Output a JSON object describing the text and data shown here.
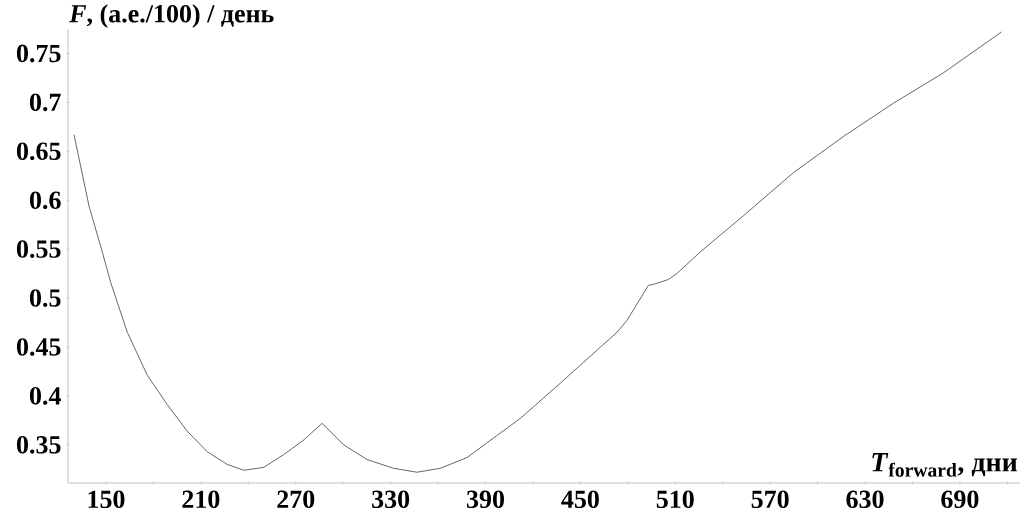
{
  "chart_data": {
    "type": "line",
    "xlabel": "*T*$_{forward}$, дни",
    "ylabel": "*F*, (а.е./100) / день",
    "x": [
      129.8,
      139.3,
      147.7,
      153,
      163.5,
      176.2,
      188.8,
      201.4,
      214,
      226.7,
      237.2,
      249.8,
      262.4,
      275.1,
      286.7,
      300.3,
      315.1,
      331.9,
      346.7,
      361.4,
      378.3,
      395.1,
      412,
      437.3,
      473.1,
      479.4,
      493,
      496.2,
      505.7,
      511,
      525.7,
      553,
      584.6,
      616.2,
      647.8,
      679.4,
      716.3
    ],
    "values": [
      0.667,
      0.594,
      0.547,
      0.516,
      0.465,
      0.421,
      0.391,
      0.364,
      0.343,
      0.33,
      0.324,
      0.327,
      0.34,
      0.355,
      0.372,
      0.35,
      0.335,
      0.326,
      0.322,
      0.326,
      0.337,
      0.357,
      0.377,
      0.413,
      0.465,
      0.477,
      0.513,
      0.514,
      0.519,
      0.525,
      0.547,
      0.584,
      0.628,
      0.665,
      0.699,
      0.73,
      0.772
    ],
    "color": "#404040",
    "xlim": [
      126,
      728
    ],
    "ylim": [
      0.311,
      0.775
    ],
    "xticks": [
      150,
      {
        "value": 180,
        "label": null
      },
      210,
      {
        "value": 240,
        "label": null
      },
      270,
      {
        "value": 300,
        "label": null
      },
      330,
      {
        "value": 360,
        "label": null
      },
      390,
      {
        "value": 420,
        "label": null
      },
      450,
      {
        "value": 480,
        "label": null
      },
      510,
      {
        "value": 540,
        "label": null
      },
      570,
      {
        "value": 600,
        "label": null
      },
      630,
      {
        "value": 660,
        "label": null
      },
      690,
      {
        "value": 720,
        "label": null
      }
    ],
    "yticks": [
      0.35,
      0.4,
      0.45,
      0.5,
      0.55,
      0.6,
      0.65,
      0.7,
      0.75
    ],
    "grid": false,
    "marker": "none",
    "line_style": "solid"
  }
}
